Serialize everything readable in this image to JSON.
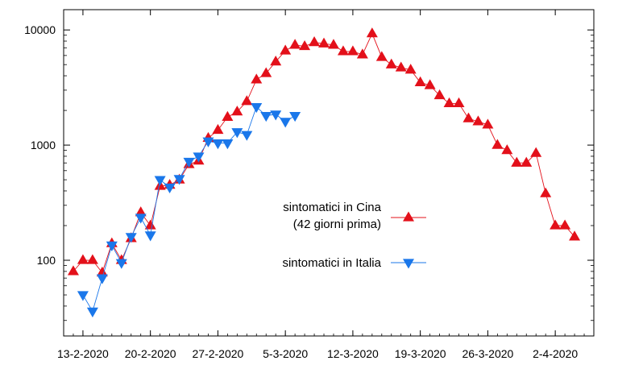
{
  "chart_data": {
    "type": "line",
    "title": "",
    "xlabel": "",
    "ylabel": "",
    "y_scale": "log",
    "ylim": [
      22,
      15000
    ],
    "xlim": [
      "2020-02-11",
      "2020-04-06"
    ],
    "grid": false,
    "legend_position": "center-right",
    "x_ticks": [
      "2020-02-13",
      "2020-02-20",
      "2020-02-27",
      "2020-03-05",
      "2020-03-12",
      "2020-03-19",
      "2020-03-26",
      "2020-04-02"
    ],
    "x_tick_labels": [
      "13-2-2020",
      "20-2-2020",
      "27-2-2020",
      "5-3-2020",
      "12-3-2020",
      "19-3-2020",
      "26-3-2020",
      "2-4-2020"
    ],
    "y_ticks": [
      100,
      1000,
      10000
    ],
    "y_tick_labels": [
      "100",
      "1000",
      "10000"
    ],
    "series": [
      {
        "name": "sintomatici in Cina\n(42 giorni prima)",
        "legend_lines": [
          "sintomatici in Cina",
          "(42 giorni prima)"
        ],
        "color": "#e3101a",
        "marker": "triangle-up",
        "x": [
          "2020-02-12",
          "2020-02-13",
          "2020-02-14",
          "2020-02-15",
          "2020-02-16",
          "2020-02-17",
          "2020-02-18",
          "2020-02-19",
          "2020-02-20",
          "2020-02-21",
          "2020-02-22",
          "2020-02-23",
          "2020-02-24",
          "2020-02-25",
          "2020-02-26",
          "2020-02-27",
          "2020-02-28",
          "2020-02-29",
          "2020-03-01",
          "2020-03-02",
          "2020-03-03",
          "2020-03-04",
          "2020-03-05",
          "2020-03-06",
          "2020-03-07",
          "2020-03-08",
          "2020-03-09",
          "2020-03-10",
          "2020-03-11",
          "2020-03-12",
          "2020-03-13",
          "2020-03-14",
          "2020-03-15",
          "2020-03-16",
          "2020-03-17",
          "2020-03-18",
          "2020-03-19",
          "2020-03-20",
          "2020-03-21",
          "2020-03-22",
          "2020-03-23",
          "2020-03-24",
          "2020-03-25",
          "2020-03-26",
          "2020-03-27",
          "2020-03-28",
          "2020-03-29",
          "2020-03-30",
          "2020-03-31",
          "2020-04-01",
          "2020-04-02",
          "2020-04-03",
          "2020-04-04"
        ],
        "values": [
          80,
          100,
          100,
          78,
          140,
          100,
          155,
          260,
          200,
          440,
          450,
          500,
          680,
          730,
          1150,
          1350,
          1750,
          1950,
          2400,
          3700,
          4200,
          5300,
          6600,
          7400,
          7200,
          7800,
          7600,
          7400,
          6500,
          6500,
          6100,
          9300,
          5800,
          5000,
          4700,
          4500,
          3500,
          3300,
          2700,
          2300,
          2300,
          1700,
          1600,
          1500,
          1000,
          900,
          700,
          700,
          850,
          380,
          200,
          200,
          160
        ]
      },
      {
        "name": "sintomatici in Italia",
        "legend_lines": [
          "sintomatici in Italia"
        ],
        "color": "#1a77ea",
        "marker": "triangle-down",
        "x": [
          "2020-02-13",
          "2020-02-14",
          "2020-02-15",
          "2020-02-16",
          "2020-02-17",
          "2020-02-18",
          "2020-02-19",
          "2020-02-20",
          "2020-02-21",
          "2020-02-22",
          "2020-02-23",
          "2020-02-24",
          "2020-02-25",
          "2020-02-26",
          "2020-02-27",
          "2020-02-28",
          "2020-02-29",
          "2020-03-01",
          "2020-03-02",
          "2020-03-03",
          "2020-03-04",
          "2020-03-05",
          "2020-03-06"
        ],
        "values": [
          50,
          36,
          70,
          135,
          95,
          160,
          235,
          165,
          500,
          430,
          510,
          720,
          800,
          1080,
          1040,
          1040,
          1300,
          1230,
          2150,
          1800,
          1850,
          1600,
          1800
        ]
      }
    ]
  }
}
